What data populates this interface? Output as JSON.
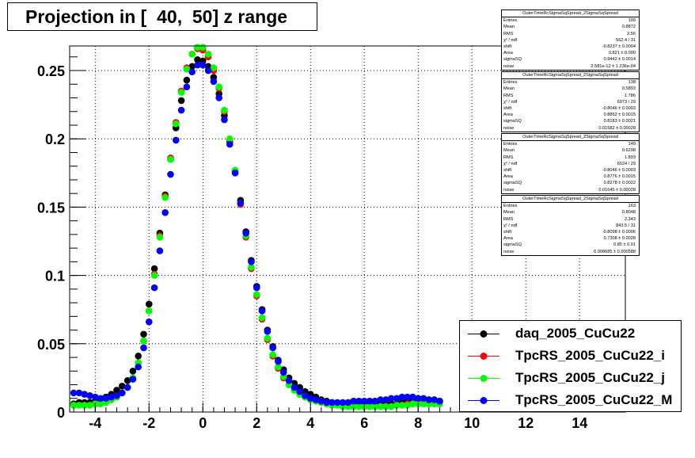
{
  "title": "Projection in [  40,  50] z range",
  "colors": {
    "daq": "#000000",
    "i": "#ff0000",
    "j": "#00ff00",
    "M": "#0000ff"
  },
  "stats": [
    {
      "header": "OuterTimeRcSigmaSqSpread_2SigmaSqSpread",
      "rows": [
        {
          "label": "Entries",
          "value": "199"
        },
        {
          "label": "Mean",
          "value": "0.8872"
        },
        {
          "label": "RMS",
          "value": "2.56"
        },
        {
          "label": "χ² / ndf",
          "value": "562.4 / 31"
        },
        {
          "label": "shift",
          "value": "-0.8237 ± 0.0004"
        },
        {
          "label": "Area",
          "value": "0.821 ± 0.000"
        },
        {
          "label": "sigmaSQ",
          "value": "0.9442 ± 0.0014"
        },
        {
          "label": "noise",
          "value": "2.581e-12 ± 1.236e-04"
        }
      ]
    },
    {
      "header": "OuterTimeRcSigmaSqSpread_2SigmaSqSpread",
      "rows": [
        {
          "label": "Entries",
          "value": "138"
        },
        {
          "label": "Mean",
          "value": "0.5893"
        },
        {
          "label": "RMS",
          "value": "1.786"
        },
        {
          "label": "χ² / ndf",
          "value": "6973 / 29"
        },
        {
          "label": "shift",
          "value": "-0.8046 ± 0.0003"
        },
        {
          "label": "Area",
          "value": "0.8852 ± 0.0015"
        },
        {
          "label": "sigmaSQ",
          "value": "0.8183 ± 0.0021"
        },
        {
          "label": "noise",
          "value": "0.01582 ± 0.00028"
        }
      ]
    },
    {
      "header": "OuterTimeRcSigmaSqSpread_2SigmaSqSpread",
      "rows": [
        {
          "label": "Entries",
          "value": "149"
        },
        {
          "label": "Mean",
          "value": "0.6298"
        },
        {
          "label": "RMS",
          "value": "1.893"
        },
        {
          "label": "χ² / ndf",
          "value": "6524 / 29"
        },
        {
          "label": "shift",
          "value": "-0.8046 ± 0.0003"
        },
        {
          "label": "Area",
          "value": "0.8776 ± 0.0015"
        },
        {
          "label": "sigmaSQ",
          "value": "0.8278 ± 0.0022"
        },
        {
          "label": "noise",
          "value": "0.01645 ± 0.00028"
        }
      ]
    },
    {
      "header": "OuterTimeRcSigmaSqSpread_2SigmaSqSpread",
      "rows": [
        {
          "label": "Entries",
          "value": "163"
        },
        {
          "label": "Mean",
          "value": "0.8048"
        },
        {
          "label": "RMS",
          "value": "2.343"
        },
        {
          "label": "χ² / ndf",
          "value": "843.5 / 31"
        },
        {
          "label": "shift",
          "value": "-0.8098 ± 0.0006"
        },
        {
          "label": "Area",
          "value": "0.7308 ± 0.0028"
        },
        {
          "label": "sigmaSQ",
          "value": "0.85 ± 0.01"
        },
        {
          "label": "noise",
          "value": "0.008685 ± 0.000588"
        }
      ]
    }
  ],
  "chart_data": {
    "type": "scatter",
    "title": "Projection in [  40,  50] z range",
    "xlabel": "",
    "ylabel": "",
    "xlim": [
      -4.95,
      15.7
    ],
    "ylim": [
      0,
      0.268
    ],
    "x_ticks": [
      -4,
      -2,
      0,
      2,
      4,
      6,
      8,
      10,
      12,
      14
    ],
    "x_tick_labels": [
      "-4",
      "-2",
      "0",
      "2",
      "4",
      "6",
      "8",
      "10",
      "12",
      "14"
    ],
    "y_ticks": [
      0,
      0.05,
      0.1,
      0.15,
      0.2,
      0.25
    ],
    "y_tick_labels": [
      "0",
      "0.05",
      "0.1",
      "0.15",
      "0.2",
      "0.25"
    ],
    "grid": true,
    "legend_position": "bottom-right",
    "series": [
      {
        "name": "daq_2005_CuCu22",
        "color": "#000000",
        "style": "markers",
        "x": [
          -4.8,
          -4.6,
          -4.4,
          -4.2,
          -4.0,
          -3.8,
          -3.6,
          -3.4,
          -3.2,
          -3.0,
          -2.8,
          -2.6,
          -2.4,
          -2.2,
          -2.0,
          -1.8,
          -1.6,
          -1.4,
          -1.2,
          -1.0,
          -0.8,
          -0.6,
          -0.4,
          -0.2,
          0.0,
          0.2,
          0.4,
          0.6,
          0.8,
          1.0,
          1.2,
          1.4,
          1.6,
          1.8,
          2.0,
          2.2,
          2.4,
          2.6,
          2.8,
          3.0,
          3.2,
          3.4,
          3.6,
          3.8,
          4.0,
          4.2,
          4.4,
          4.6,
          4.8,
          5.0,
          5.2,
          5.4,
          5.6,
          5.8,
          6.0,
          6.2,
          6.4,
          6.6,
          6.8,
          7.0,
          7.2,
          7.4,
          7.6,
          7.8,
          8.0,
          8.2,
          8.4,
          8.6,
          8.8
        ],
        "y": [
          0.006,
          0.007,
          0.007,
          0.007,
          0.008,
          0.009,
          0.011,
          0.013,
          0.016,
          0.019,
          0.023,
          0.03,
          0.041,
          0.057,
          0.079,
          0.105,
          0.131,
          0.159,
          0.185,
          0.208,
          0.228,
          0.243,
          0.253,
          0.258,
          0.257,
          0.253,
          0.245,
          0.233,
          0.217,
          0.198,
          0.177,
          0.155,
          0.132,
          0.111,
          0.092,
          0.075,
          0.06,
          0.048,
          0.038,
          0.031,
          0.025,
          0.021,
          0.018,
          0.015,
          0.013,
          0.011,
          0.009,
          0.008,
          0.007,
          0.006,
          0.005,
          0.005,
          0.005,
          0.005,
          0.005,
          0.005,
          0.005,
          0.006,
          0.006,
          0.006,
          0.006,
          0.007,
          0.008,
          0.008,
          0.009,
          0.009,
          0.009,
          0.009,
          0.008
        ]
      },
      {
        "name": "TpcRS_2005_CuCu22_i",
        "color": "#ff0000",
        "style": "markers",
        "x": [
          -4.8,
          -4.6,
          -4.4,
          -4.2,
          -4.0,
          -3.8,
          -3.6,
          -3.4,
          -3.2,
          -3.0,
          -2.8,
          -2.6,
          -2.4,
          -2.2,
          -2.0,
          -1.8,
          -1.6,
          -1.4,
          -1.2,
          -1.0,
          -0.8,
          -0.6,
          -0.4,
          -0.2,
          0.0,
          0.2,
          0.4,
          0.6,
          0.8,
          1.0,
          1.2,
          1.4,
          1.6,
          1.8,
          2.0,
          2.2,
          2.4,
          2.6,
          2.8,
          3.0,
          3.2,
          3.4,
          3.6,
          3.8,
          4.0,
          4.2,
          4.4,
          4.6,
          4.8,
          5.0,
          5.2,
          5.4,
          5.6,
          5.8,
          6.0,
          6.2,
          6.4,
          6.6,
          6.8,
          7.0,
          7.2,
          7.4,
          7.6,
          7.8,
          8.0,
          8.2,
          8.4,
          8.6,
          8.8
        ],
        "y": [
          0.005,
          0.005,
          0.005,
          0.005,
          0.006,
          0.007,
          0.008,
          0.009,
          0.011,
          0.014,
          0.018,
          0.025,
          0.036,
          0.052,
          0.074,
          0.101,
          0.129,
          0.158,
          0.186,
          0.212,
          0.235,
          0.252,
          0.262,
          0.266,
          0.265,
          0.26,
          0.25,
          0.237,
          0.22,
          0.199,
          0.176,
          0.152,
          0.128,
          0.105,
          0.085,
          0.068,
          0.053,
          0.041,
          0.032,
          0.025,
          0.02,
          0.016,
          0.013,
          0.011,
          0.009,
          0.008,
          0.007,
          0.006,
          0.005,
          0.005,
          0.004,
          0.004,
          0.004,
          0.004,
          0.004,
          0.004,
          0.004,
          0.004,
          0.004,
          0.004,
          0.005,
          0.005,
          0.006,
          0.006,
          0.007,
          0.007,
          0.008,
          0.008,
          0.008
        ]
      },
      {
        "name": "TpcRS_2005_CuCu22_j",
        "color": "#00ff00",
        "style": "markers",
        "x": [
          -4.8,
          -4.6,
          -4.4,
          -4.2,
          -4.0,
          -3.8,
          -3.6,
          -3.4,
          -3.2,
          -3.0,
          -2.8,
          -2.6,
          -2.4,
          -2.2,
          -2.0,
          -1.8,
          -1.6,
          -1.4,
          -1.2,
          -1.0,
          -0.8,
          -0.6,
          -0.4,
          -0.2,
          0.0,
          0.2,
          0.4,
          0.6,
          0.8,
          1.0,
          1.2,
          1.4,
          1.6,
          1.8,
          2.0,
          2.2,
          2.4,
          2.6,
          2.8,
          3.0,
          3.2,
          3.4,
          3.6,
          3.8,
          4.0,
          4.2,
          4.4,
          4.6,
          4.8,
          5.0,
          5.2,
          5.4,
          5.6,
          5.8,
          6.0,
          6.2,
          6.4,
          6.6,
          6.8,
          7.0,
          7.2,
          7.4,
          7.6,
          7.8,
          8.0,
          8.2,
          8.4,
          8.6,
          8.8
        ],
        "y": [
          0.005,
          0.005,
          0.005,
          0.005,
          0.006,
          0.006,
          0.007,
          0.009,
          0.011,
          0.014,
          0.018,
          0.025,
          0.036,
          0.052,
          0.074,
          0.1,
          0.128,
          0.157,
          0.185,
          0.211,
          0.234,
          0.251,
          0.262,
          0.267,
          0.267,
          0.262,
          0.252,
          0.238,
          0.221,
          0.2,
          0.177,
          0.153,
          0.129,
          0.106,
          0.086,
          0.069,
          0.054,
          0.042,
          0.033,
          0.026,
          0.02,
          0.016,
          0.013,
          0.011,
          0.009,
          0.008,
          0.007,
          0.006,
          0.005,
          0.005,
          0.004,
          0.004,
          0.004,
          0.004,
          0.004,
          0.004,
          0.004,
          0.004,
          0.004,
          0.004,
          0.005,
          0.005,
          0.005,
          0.006,
          0.006,
          0.006,
          0.006,
          0.006,
          0.006
        ]
      },
      {
        "name": "TpcRS_2005_CuCu22_M",
        "color": "#0000ff",
        "style": "markers",
        "x": [
          -4.8,
          -4.6,
          -4.4,
          -4.2,
          -4.0,
          -3.8,
          -3.6,
          -3.4,
          -3.2,
          -3.0,
          -2.8,
          -2.6,
          -2.4,
          -2.2,
          -2.0,
          -1.8,
          -1.6,
          -1.4,
          -1.2,
          -1.0,
          -0.8,
          -0.6,
          -0.4,
          -0.2,
          0.0,
          0.2,
          0.4,
          0.6,
          0.8,
          1.0,
          1.2,
          1.4,
          1.6,
          1.8,
          2.0,
          2.2,
          2.4,
          2.6,
          2.8,
          3.0,
          3.2,
          3.4,
          3.6,
          3.8,
          4.0,
          4.2,
          4.4,
          4.6,
          4.8,
          5.0,
          5.2,
          5.4,
          5.6,
          5.8,
          6.0,
          6.2,
          6.4,
          6.6,
          6.8,
          7.0,
          7.2,
          7.4,
          7.6,
          7.8,
          8.0,
          8.2,
          8.4,
          8.6,
          8.8
        ],
        "y": [
          0.014,
          0.014,
          0.013,
          0.012,
          0.011,
          0.01,
          0.01,
          0.011,
          0.012,
          0.014,
          0.018,
          0.024,
          0.033,
          0.047,
          0.066,
          0.091,
          0.118,
          0.146,
          0.174,
          0.199,
          0.221,
          0.238,
          0.249,
          0.254,
          0.254,
          0.25,
          0.242,
          0.23,
          0.214,
          0.196,
          0.175,
          0.153,
          0.131,
          0.11,
          0.091,
          0.074,
          0.059,
          0.047,
          0.037,
          0.029,
          0.023,
          0.018,
          0.015,
          0.012,
          0.01,
          0.009,
          0.008,
          0.007,
          0.007,
          0.007,
          0.007,
          0.007,
          0.008,
          0.008,
          0.008,
          0.008,
          0.008,
          0.009,
          0.009,
          0.01,
          0.01,
          0.011,
          0.011,
          0.011,
          0.01,
          0.01,
          0.009,
          0.009,
          0.008
        ]
      }
    ]
  }
}
